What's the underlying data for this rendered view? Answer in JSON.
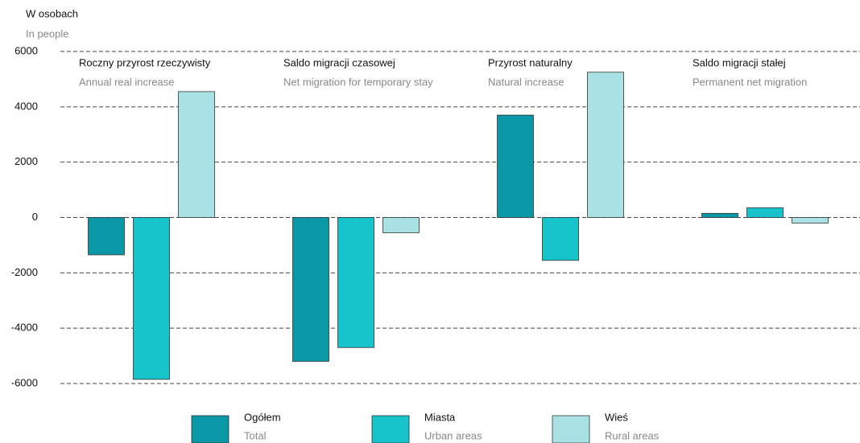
{
  "chart_data": {
    "type": "bar",
    "y_label": "W osobach",
    "y_label_en": "In people",
    "categories": [
      "Roczny przyrost rzeczywisty",
      "Saldo migracji czasowej",
      "Przyrost naturalny",
      "Saldo migracji stałej"
    ],
    "categories_en": [
      "Annual real increase",
      "Net migration for temporary stay",
      "Natural increase",
      "Permanent net migration"
    ],
    "series": [
      {
        "name": "Ogółem",
        "name_en": "Total",
        "color": "#0a97a6",
        "values": [
          -1350,
          -5200,
          3700,
          150
        ]
      },
      {
        "name": "Miasta",
        "name_en": "Urban areas",
        "color": "#17c4cb",
        "values": [
          -5850,
          -4700,
          -1550,
          350
        ]
      },
      {
        "name": "Wieś",
        "name_en": "Rural areas",
        "color": "#a9e2e4",
        "values": [
          4550,
          -550,
          5250,
          -200
        ]
      }
    ],
    "ylim": [
      -6000,
      6000
    ],
    "yticks": [
      -6000,
      -4000,
      -2000,
      0,
      2000,
      4000,
      6000
    ],
    "grid": true
  }
}
